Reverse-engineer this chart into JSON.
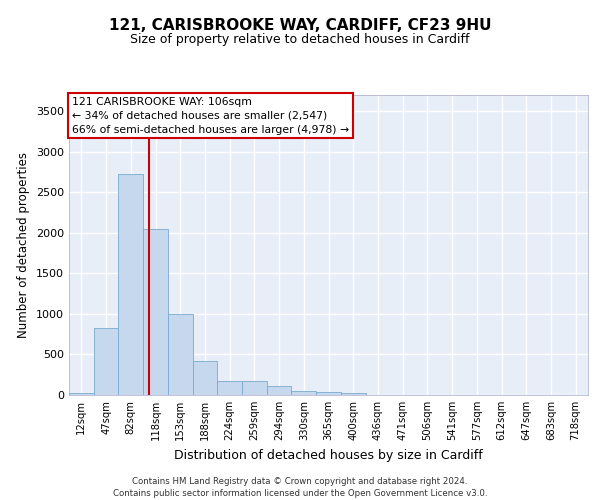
{
  "title_line1": "121, CARISBROOKE WAY, CARDIFF, CF23 9HU",
  "title_line2": "Size of property relative to detached houses in Cardiff",
  "xlabel": "Distribution of detached houses by size in Cardiff",
  "ylabel": "Number of detached properties",
  "background_color": "#e8eef8",
  "bar_color": "#c5d8ee",
  "bar_edge_color": "#7aaace",
  "grid_color": "#ffffff",
  "categories": [
    "12sqm",
    "47sqm",
    "82sqm",
    "118sqm",
    "153sqm",
    "188sqm",
    "224sqm",
    "259sqm",
    "294sqm",
    "330sqm",
    "365sqm",
    "400sqm",
    "436sqm",
    "471sqm",
    "506sqm",
    "541sqm",
    "577sqm",
    "612sqm",
    "647sqm",
    "683sqm",
    "718sqm"
  ],
  "values": [
    30,
    830,
    2720,
    2050,
    1000,
    420,
    175,
    170,
    110,
    50,
    40,
    25,
    5,
    0,
    0,
    0,
    0,
    0,
    0,
    0,
    0
  ],
  "ylim": [
    0,
    3700
  ],
  "yticks": [
    0,
    500,
    1000,
    1500,
    2000,
    2500,
    3000,
    3500
  ],
  "property_line_x": 2.72,
  "annotation_text_line1": "121 CARISBROOKE WAY: 106sqm",
  "annotation_text_line2": "← 34% of detached houses are smaller (2,547)",
  "annotation_text_line3": "66% of semi-detached houses are larger (4,978) →",
  "annotation_box_color": "#ffffff",
  "annotation_box_edge": "#cc0000",
  "property_line_color": "#cc0000",
  "footer_line1": "Contains HM Land Registry data © Crown copyright and database right 2024.",
  "footer_line2": "Contains public sector information licensed under the Open Government Licence v3.0."
}
